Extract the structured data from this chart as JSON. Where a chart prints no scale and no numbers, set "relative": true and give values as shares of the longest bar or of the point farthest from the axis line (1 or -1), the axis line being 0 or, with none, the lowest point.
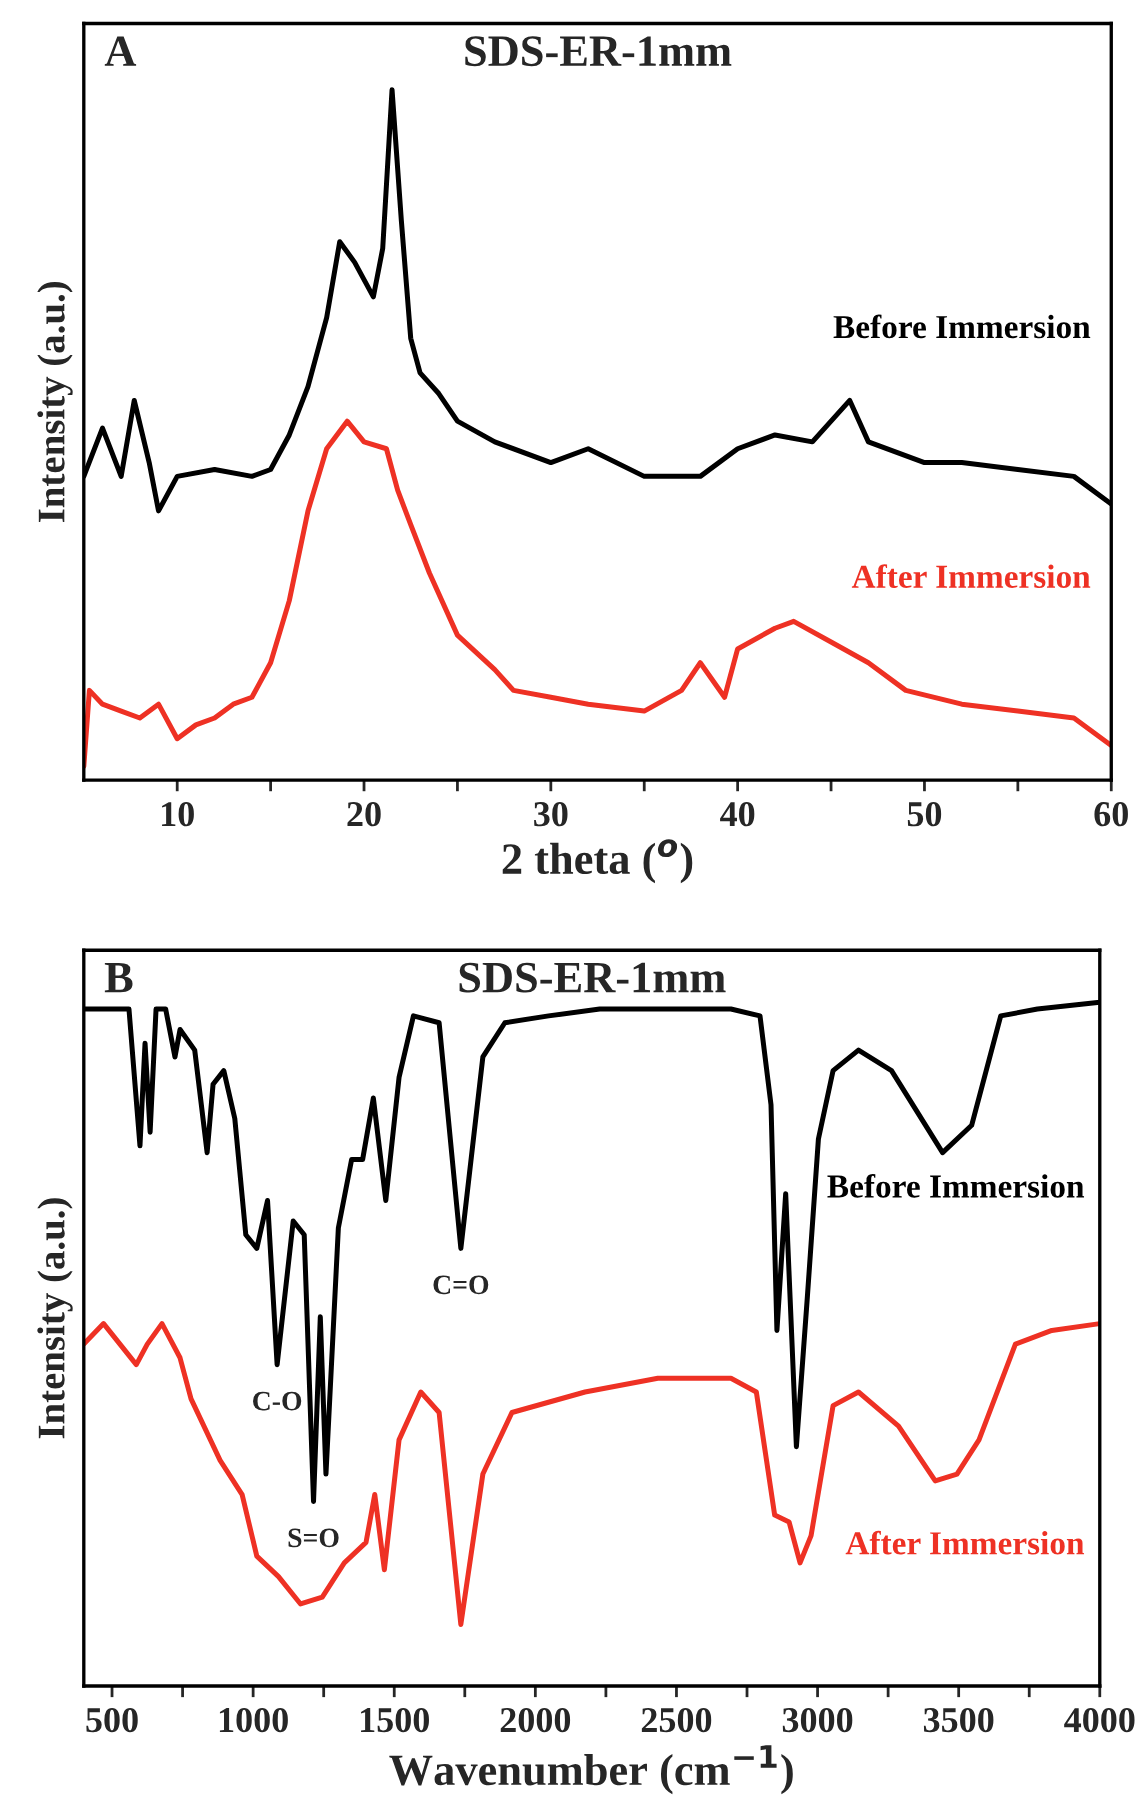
{
  "chart_data": [
    {
      "type": "line",
      "title": "SDS-ER-1mm",
      "xlabel": "2 theta ($^{o}$)",
      "ylabel": "Intensity (a.u.)",
      "relative": true,
      "tick_labels": "x",
      "xlim": [
        5,
        60
      ],
      "xticks": [
        10,
        {
          "value": 15,
          "label": null
        },
        20,
        {
          "value": 25,
          "label": null
        },
        30,
        {
          "value": 35,
          "label": null
        },
        40,
        {
          "value": 45,
          "label": null
        },
        50,
        {
          "value": 55,
          "label": null
        },
        60
      ],
      "annotations": [
        "A"
      ],
      "grid": false,
      "legend": false,
      "series": [
        {
          "name": "Before Immersion",
          "color": "#000000",
          "x": [
            5,
            6,
            7,
            7.7,
            8.5,
            9,
            10,
            12,
            14,
            15,
            16,
            17,
            18,
            18.7,
            19.5,
            20.5,
            21,
            21.5,
            22,
            22.5,
            23,
            24,
            25,
            27,
            30,
            32,
            35,
            38,
            40,
            42,
            44,
            46,
            47,
            50,
            52,
            55,
            58,
            60
          ],
          "values": [
            0.44,
            0.51,
            0.44,
            0.55,
            0.46,
            0.39,
            0.44,
            0.45,
            0.44,
            0.45,
            0.5,
            0.57,
            0.67,
            0.78,
            0.75,
            0.7,
            0.77,
            1,
            0.81,
            0.64,
            0.59,
            0.56,
            0.52,
            0.49,
            0.46,
            0.48,
            0.44,
            0.44,
            0.48,
            0.5,
            0.49,
            0.55,
            0.49,
            0.46,
            0.46,
            0.45,
            0.44,
            0.4
          ]
        },
        {
          "name": "After Immersion",
          "color": "#ee3124",
          "x": [
            5,
            5.3,
            6,
            7,
            8,
            9,
            10,
            11,
            12,
            13,
            14,
            15,
            16,
            17,
            18,
            19.1,
            20,
            21.2,
            21.8,
            22.5,
            23.5,
            25,
            27,
            28,
            30,
            32,
            35,
            37,
            38,
            39.3,
            40,
            42,
            43,
            45,
            47,
            49,
            52,
            55,
            58,
            60
          ],
          "values": [
            0.02,
            0.13,
            0.11,
            0.1,
            0.09,
            0.11,
            0.06,
            0.08,
            0.09,
            0.11,
            0.12,
            0.17,
            0.26,
            0.39,
            0.48,
            0.52,
            0.49,
            0.48,
            0.42,
            0.37,
            0.3,
            0.21,
            0.16,
            0.13,
            0.12,
            0.11,
            0.1,
            0.13,
            0.17,
            0.12,
            0.19,
            0.22,
            0.23,
            0.2,
            0.17,
            0.13,
            0.11,
            0.1,
            0.09,
            0.05
          ]
        }
      ]
    },
    {
      "type": "line",
      "title": "SDS-ER-1mm",
      "xlabel": "Wavenumber (cm$^{−1}$)",
      "ylabel": "Intensity (a.u.)",
      "relative": true,
      "tick_labels": "x",
      "xlim": [
        400,
        4000
      ],
      "xticks": [
        500,
        {
          "value": 750,
          "label": null
        },
        1000,
        {
          "value": 1250,
          "label": null
        },
        1500,
        {
          "value": 1750,
          "label": null
        },
        2000,
        {
          "value": 2250,
          "label": null
        },
        2500,
        {
          "value": 2750,
          "label": null
        },
        3000,
        {
          "value": 3250,
          "label": null
        },
        3500,
        {
          "value": 3750,
          "label": null
        },
        4000
      ],
      "annotations": [
        "B",
        {
          "text": "C=O",
          "x": 1736,
          "y": 0.64
        },
        {
          "text": "C-O",
          "x": 1085,
          "y": 0.47
        },
        {
          "text": "S=O",
          "x": 1214,
          "y": 0.27
        }
      ],
      "grid": false,
      "legend": false,
      "series": [
        {
          "name": "Before Immersion",
          "color": "#000000",
          "x": [
            400,
            560,
            599,
            617,
            635,
            656,
            690,
            723,
            741,
            793,
            837,
            858,
            896,
            935,
            974,
            1013,
            1051,
            1085,
            1142,
            1181,
            1214,
            1238,
            1258,
            1302,
            1349,
            1388,
            1426,
            1470,
            1517,
            1568,
            1659,
            1736,
            1814,
            1892,
            2047,
            2228,
            2434,
            2693,
            2796,
            2835,
            2856,
            2887,
            2925,
            2964,
            3003,
            3055,
            3145,
            3262,
            3443,
            3546,
            3649,
            3779,
            4000
          ],
          "values": [
            0.99,
            0.99,
            0.79,
            0.94,
            0.81,
            0.99,
            0.99,
            0.92,
            0.96,
            0.93,
            0.78,
            0.88,
            0.9,
            0.83,
            0.66,
            0.64,
            0.71,
            0.47,
            0.68,
            0.66,
            0.27,
            0.54,
            0.31,
            0.67,
            0.77,
            0.77,
            0.86,
            0.71,
            0.89,
            0.98,
            0.97,
            0.64,
            0.92,
            0.97,
            0.98,
            0.99,
            0.99,
            0.99,
            0.98,
            0.85,
            0.52,
            0.72,
            0.35,
            0.57,
            0.8,
            0.9,
            0.93,
            0.9,
            0.78,
            0.82,
            0.98,
            0.99,
            1
          ]
        },
        {
          "name": "After Immersion",
          "color": "#ee3124",
          "x": [
            400,
            470,
            586,
            625,
            677,
            741,
            780,
            883,
            961,
            1013,
            1090,
            1168,
            1245,
            1323,
            1400,
            1431,
            1465,
            1517,
            1594,
            1659,
            1736,
            1814,
            1917,
            2176,
            2434,
            2693,
            2783,
            2848,
            2899,
            2938,
            2977,
            3055,
            3145,
            3287,
            3417,
            3494,
            3572,
            3701,
            3830,
            4000
          ],
          "values": [
            0.5,
            0.53,
            0.47,
            0.5,
            0.53,
            0.48,
            0.42,
            0.33,
            0.28,
            0.19,
            0.16,
            0.12,
            0.13,
            0.18,
            0.21,
            0.28,
            0.17,
            0.36,
            0.43,
            0.4,
            0.09,
            0.31,
            0.4,
            0.43,
            0.45,
            0.45,
            0.43,
            0.25,
            0.24,
            0.18,
            0.22,
            0.41,
            0.43,
            0.38,
            0.3,
            0.31,
            0.36,
            0.5,
            0.52,
            0.53
          ]
        }
      ]
    }
  ]
}
